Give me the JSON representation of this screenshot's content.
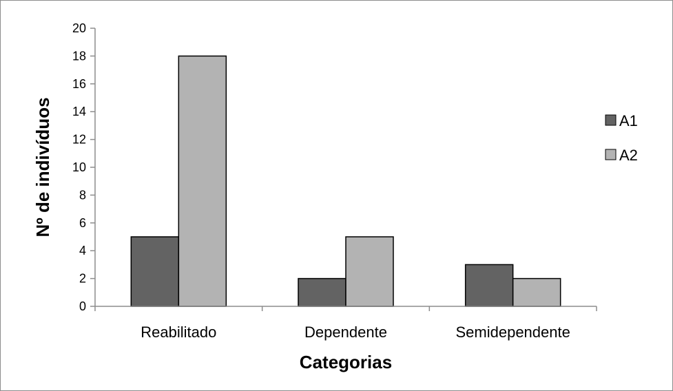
{
  "chart_data": {
    "type": "bar",
    "categories": [
      "Reabilitado",
      "Dependente",
      "Semidependente"
    ],
    "series": [
      {
        "name": "A1",
        "values": [
          5,
          2,
          3
        ],
        "color": "#636363"
      },
      {
        "name": "A2",
        "values": [
          18,
          5,
          2
        ],
        "color": "#b3b3b3"
      }
    ],
    "xlabel": "Categorias",
    "ylabel": "Nº de indivíduos",
    "ylim": [
      0,
      20
    ],
    "yticks": [
      0,
      2,
      4,
      6,
      8,
      10,
      12,
      14,
      16,
      18,
      20
    ],
    "grid": false,
    "legend_position": "right"
  }
}
